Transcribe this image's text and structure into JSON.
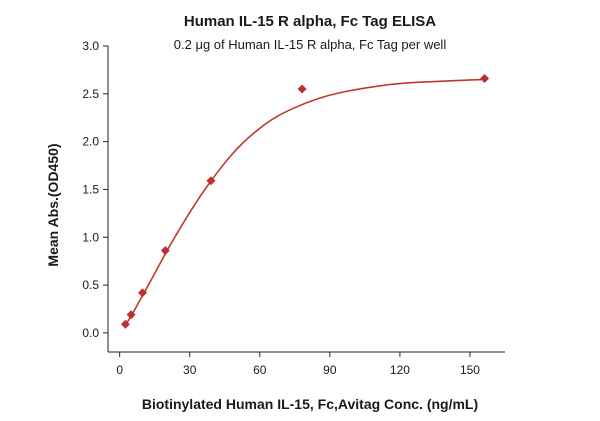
{
  "chart_data": {
    "type": "scatter",
    "title": "Human IL-15 R alpha, Fc Tag ELISA",
    "subtitle": "0.2 μg of Human IL-15 R alpha, Fc Tag per well",
    "xlabel": "Biotinylated Human IL-15, Fc,Avitag Conc. (ng/mL)",
    "ylabel": "Mean Abs.(OD450)",
    "xlim": [
      -5,
      165
    ],
    "ylim": [
      -0.2,
      3.0
    ],
    "xticks": [
      0,
      30,
      60,
      90,
      120,
      150
    ],
    "yticks": [
      0.0,
      0.5,
      1.0,
      1.5,
      2.0,
      2.5,
      3.0
    ],
    "xtick_labels": [
      "0",
      "30",
      "60",
      "90",
      "120",
      "150"
    ],
    "ytick_labels": [
      "0.0",
      "0.5",
      "1.0",
      "1.5",
      "2.0",
      "2.5",
      "3.0"
    ],
    "grid": false,
    "legend": "none",
    "series": [
      {
        "points": [
          {
            "x": 2.44,
            "y": 0.09
          },
          {
            "x": 4.88,
            "y": 0.19
          },
          {
            "x": 9.77,
            "y": 0.42
          },
          {
            "x": 19.53,
            "y": 0.86
          },
          {
            "x": 39.06,
            "y": 1.59
          },
          {
            "x": 78.13,
            "y": 2.55
          },
          {
            "x": 156.25,
            "y": 2.66
          }
        ],
        "marker": "diamond",
        "color": "#b83232"
      }
    ],
    "fit_curve": {
      "type": "sigmoidal",
      "color": "#c0392b",
      "points": [
        {
          "x": 2.44,
          "y": 0.08
        },
        {
          "x": 5,
          "y": 0.18
        },
        {
          "x": 10,
          "y": 0.4
        },
        {
          "x": 15,
          "y": 0.62
        },
        {
          "x": 20,
          "y": 0.85
        },
        {
          "x": 25,
          "y": 1.06
        },
        {
          "x": 30,
          "y": 1.26
        },
        {
          "x": 35,
          "y": 1.45
        },
        {
          "x": 40,
          "y": 1.62
        },
        {
          "x": 45,
          "y": 1.78
        },
        {
          "x": 50,
          "y": 1.92
        },
        {
          "x": 55,
          "y": 2.04
        },
        {
          "x": 60,
          "y": 2.14
        },
        {
          "x": 65,
          "y": 2.23
        },
        {
          "x": 70,
          "y": 2.3
        },
        {
          "x": 80,
          "y": 2.41
        },
        {
          "x": 90,
          "y": 2.49
        },
        {
          "x": 100,
          "y": 2.54
        },
        {
          "x": 110,
          "y": 2.58
        },
        {
          "x": 120,
          "y": 2.61
        },
        {
          "x": 135,
          "y": 2.63
        },
        {
          "x": 156.25,
          "y": 2.65
        }
      ]
    }
  }
}
